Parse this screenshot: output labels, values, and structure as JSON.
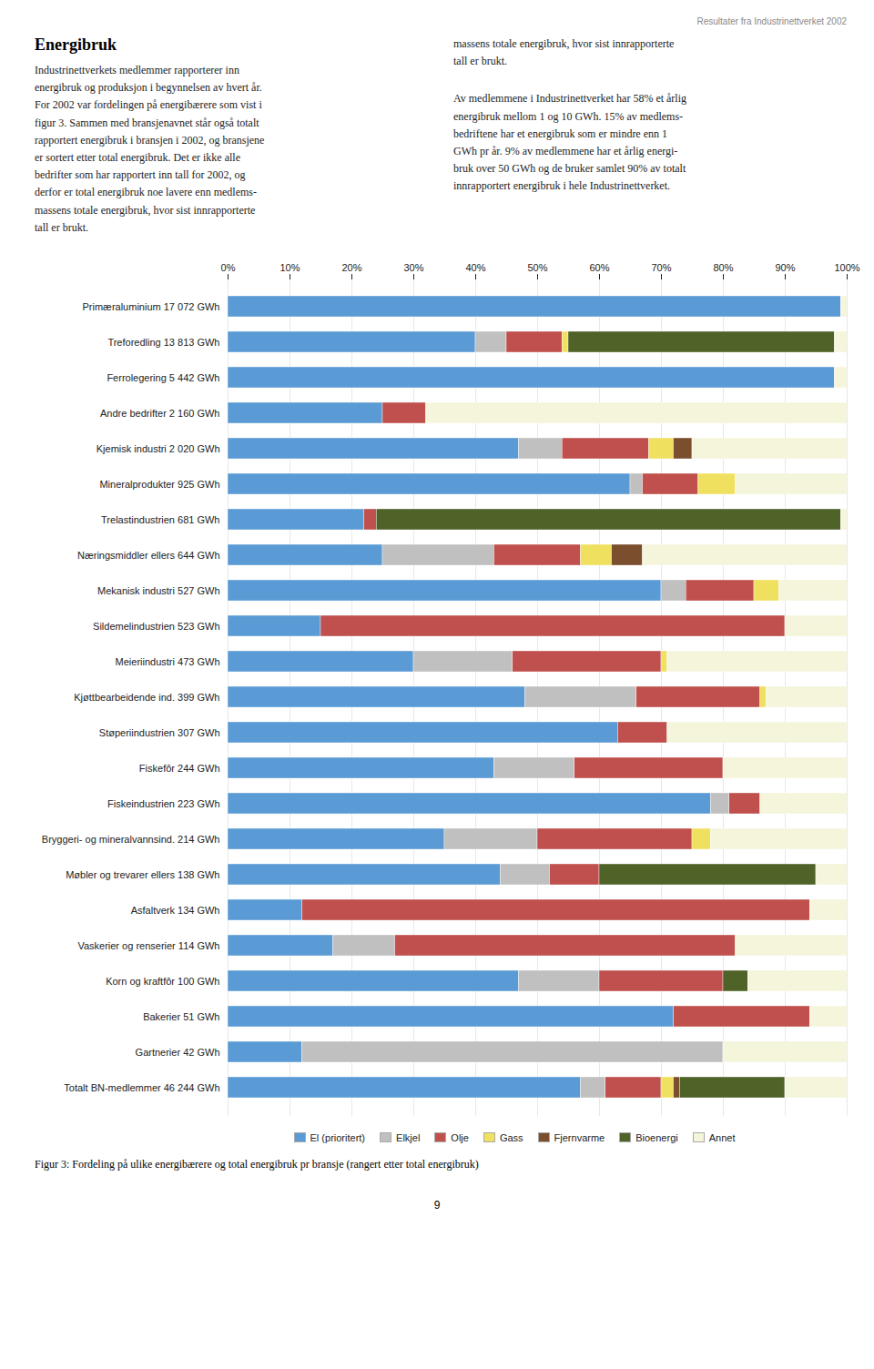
{
  "chart_data": {
    "type": "bar",
    "orientation": "horizontal",
    "stacked": true,
    "header": "Resultater fra Industrinettverket 2002",
    "title": "Energibruk",
    "left_text": "Industrinettverkets medlemmer rapporterer inn\nenergibruk og produksjon i begynnelsen av hvert år.\nFor 2002 var fordelingen på energibærere som vist i\nfigur 3. Sammen med bransjenavnet står også totalt\nrapportert energibruk i bransjen i 2002, og bransjene\ner sortert etter total energibruk. Det er ikke alle\nbedrifter som har rapportert inn tall for 2002, og\nderfor er total energibruk noe lavere enn medlems-\nmassens totale energibruk, hvor sist innrapporterte\ntall er brukt.",
    "right_text_top": "massens totale energibruk, hvor sist innrapporterte\ntall er brukt.",
    "right_text_bottom": "Av medlemmene i Industrinettverket har 58% et årlig\nenergibruk mellom 1 og 10 GWh. 15% av medlems-\nbedriftene har et energibruk som er mindre enn 1\nGWh pr år. 9% av medlemmene har et årlig energi-\nbruk over 50 GWh og de bruker samlet 90% av totalt\ninnrapportert energibruk i hele Industrinettverket.",
    "caption": "Figur 3: Fordeling på ulike energibærere og total energibruk pr bransje (rangert etter total energibruk)",
    "page_number": "9",
    "categories": [
      "Primæraluminium 17 072 GWh",
      "Treforedling 13 813 GWh",
      "Ferrolegering 5 442 GWh",
      "Andre bedrifter 2 160 GWh",
      "Kjemisk industri 2 020 GWh",
      "Mineralprodukter 925 GWh",
      "Trelastindustrien 681 GWh",
      "Næringsmiddler ellers 644 GWh",
      "Mekanisk industri 527 GWh",
      "Sildemelindustrien 523 GWh",
      "Meieriindustri 473 GWh",
      "Kjøttbearbeidende ind. 399 GWh",
      "Støperiindustrien 307 GWh",
      "Fiskefôr 244 GWh",
      "Fiskeindustrien 223 GWh",
      "Bryggeri- og mineralvannsind. 214 GWh",
      "Møbler og trevarer ellers 138 GWh",
      "Asfaltverk 134 GWh",
      "Vaskerier og renserier 114 GWh",
      "Korn og kraftfôr 100 GWh",
      "Bakerier 51 GWh",
      "Gartnerier 42 GWh",
      "Totalt BN-medlemmer 46 244 GWh"
    ],
    "series": [
      {
        "name": "El (prioritert)",
        "color": "#5B9BD5",
        "values": [
          99,
          40,
          98,
          25,
          47,
          65,
          22,
          25,
          70,
          15,
          30,
          48,
          63,
          43,
          78,
          35,
          44,
          12,
          17,
          47,
          72,
          12,
          57
        ]
      },
      {
        "name": "Elkjel",
        "color": "#C0C0C0",
        "values": [
          0,
          5,
          0,
          0,
          7,
          2,
          0,
          18,
          4,
          0,
          16,
          18,
          0,
          13,
          3,
          15,
          8,
          0,
          10,
          13,
          0,
          68,
          4
        ]
      },
      {
        "name": "Olje",
        "color": "#C0504D",
        "values": [
          0,
          9,
          0,
          7,
          14,
          9,
          2,
          14,
          11,
          75,
          24,
          20,
          8,
          24,
          5,
          25,
          8,
          82,
          55,
          20,
          22,
          0,
          9
        ]
      },
      {
        "name": "Gass",
        "color": "#F0E060",
        "values": [
          0,
          1,
          0,
          0,
          4,
          6,
          0,
          5,
          4,
          0,
          1,
          1,
          0,
          0,
          0,
          3,
          0,
          0,
          0,
          0,
          0,
          0,
          2
        ]
      },
      {
        "name": "Fjernvarme",
        "color": "#7B4E2D",
        "values": [
          0,
          0,
          0,
          0,
          3,
          0,
          0,
          5,
          0,
          0,
          0,
          0,
          0,
          0,
          0,
          0,
          0,
          0,
          0,
          0,
          0,
          0,
          1
        ]
      },
      {
        "name": "Bioenergi",
        "color": "#4F6228",
        "values": [
          0,
          43,
          0,
          0,
          0,
          0,
          75,
          0,
          0,
          0,
          0,
          0,
          0,
          0,
          0,
          0,
          35,
          0,
          0,
          4,
          0,
          0,
          17
        ]
      },
      {
        "name": "Annet",
        "color": "#F5F5DC",
        "values": [
          1,
          2,
          2,
          68,
          25,
          18,
          1,
          33,
          11,
          10,
          29,
          13,
          29,
          20,
          14,
          22,
          5,
          6,
          18,
          16,
          6,
          20,
          10
        ]
      }
    ],
    "xlim": [
      0,
      100
    ],
    "xticks": [
      {
        "value": 0,
        "label": "0%"
      },
      {
        "value": 10,
        "label": "10%"
      },
      {
        "value": 20,
        "label": "20%"
      },
      {
        "value": 30,
        "label": "30%"
      },
      {
        "value": 40,
        "label": "40%"
      },
      {
        "value": 50,
        "label": "50%"
      },
      {
        "value": 60,
        "label": "60%"
      },
      {
        "value": 70,
        "label": "70%"
      },
      {
        "value": 80,
        "label": "80%"
      },
      {
        "value": 90,
        "label": "90%"
      },
      {
        "value": 100,
        "label": "100%"
      }
    ],
    "grid": true,
    "legend": "bottom"
  }
}
